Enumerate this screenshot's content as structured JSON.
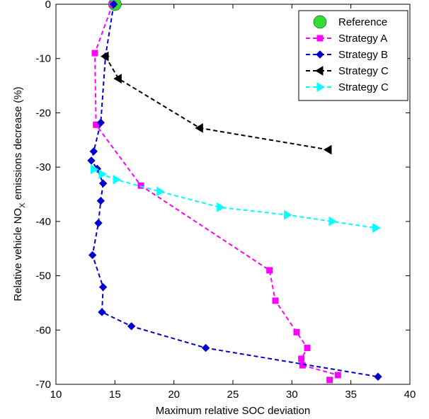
{
  "chart_data": {
    "type": "line",
    "xlabel": "Maximum relative SOC deviation",
    "ylabel_prefix": "Relative vehicle NO",
    "ylabel_sub": "X",
    "ylabel_suffix": " emissions decrease (%)",
    "xlim": [
      10,
      40
    ],
    "ylim": [
      -70,
      0
    ],
    "xticks": [
      10,
      15,
      20,
      25,
      30,
      35,
      40
    ],
    "yticks": [
      0,
      -10,
      -20,
      -30,
      -40,
      -50,
      -60,
      -70
    ],
    "legend_position": "top-right",
    "grid": false,
    "series": [
      {
        "name": "Reference",
        "color": "#33dd33",
        "marker": "circle",
        "line": "none",
        "points": [
          [
            15.0,
            0.0
          ]
        ]
      },
      {
        "name": "Strategy A",
        "color": "#ff00ff",
        "marker": "square",
        "line": "dashed",
        "points": [
          [
            14.8,
            0.0
          ],
          [
            13.3,
            -9.0
          ],
          [
            13.4,
            -22.2
          ],
          [
            17.2,
            -33.4
          ],
          [
            28.1,
            -49.0
          ],
          [
            28.6,
            -54.6
          ],
          [
            30.4,
            -60.4
          ],
          [
            31.3,
            -63.3
          ],
          [
            30.8,
            -65.3
          ],
          [
            30.9,
            -66.5
          ],
          [
            33.9,
            -68.3
          ],
          [
            33.2,
            -69.2
          ]
        ]
      },
      {
        "name": "Strategy B",
        "color": "#0000cc",
        "marker": "diamond",
        "line": "dashed",
        "points": [
          [
            14.9,
            0.0
          ],
          [
            14.2,
            -9.6
          ],
          [
            13.8,
            -21.8
          ],
          [
            13.2,
            -27.1
          ],
          [
            13.0,
            -28.8
          ],
          [
            13.5,
            -30.3
          ],
          [
            14.0,
            -33.0
          ],
          [
            13.8,
            -36.2
          ],
          [
            13.6,
            -40.3
          ],
          [
            13.1,
            -46.2
          ],
          [
            14.0,
            -52.1
          ],
          [
            13.9,
            -56.7
          ],
          [
            16.4,
            -59.3
          ],
          [
            22.7,
            -63.3
          ],
          [
            37.3,
            -68.6
          ]
        ]
      },
      {
        "name": "Strategy C",
        "color": "#000000",
        "marker": "triangle-left",
        "line": "dashed",
        "points": [
          [
            14.2,
            -9.6
          ],
          [
            15.3,
            -13.7
          ],
          [
            22.2,
            -22.8
          ],
          [
            33.1,
            -26.8
          ]
        ]
      },
      {
        "name": "Strategy C",
        "color": "#00ffff",
        "marker": "triangle-right",
        "line": "dashed",
        "points": [
          [
            13.2,
            -30.4
          ],
          [
            13.9,
            -31.3
          ],
          [
            15.1,
            -32.3
          ],
          [
            18.8,
            -34.5
          ],
          [
            23.9,
            -37.4
          ],
          [
            29.6,
            -38.8
          ],
          [
            33.4,
            -40.0
          ],
          [
            37.1,
            -41.2
          ]
        ]
      }
    ]
  }
}
